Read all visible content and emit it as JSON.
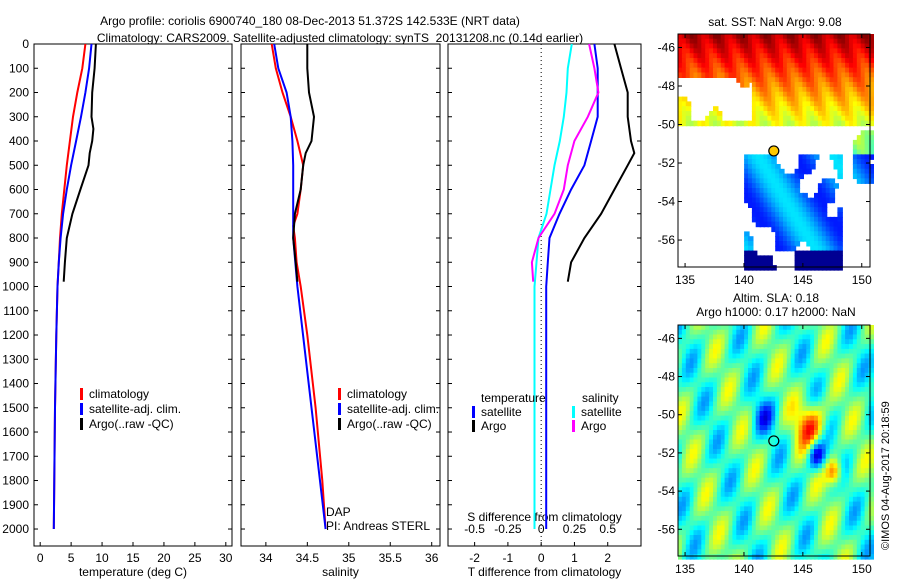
{
  "header": {
    "title1": "Argo profile: coriolis 6900740_180 08-Dec-2013 51.372S 142.533E (NRT data)",
    "title2": "Climatology: CARS2009. Satellite-adjusted climatology: synTS_20131208.nc (0.14d earlier)"
  },
  "copyright": "©IMOS 04-Aug-2017 20:18:59",
  "colors": {
    "climatology": "#ff0000",
    "satellite": "#0000ff",
    "argo": "#000000",
    "s_satellite": "#00ffff",
    "s_argo": "#ff00ff"
  },
  "chart_data": [
    {
      "type": "line",
      "xlabel": "temperature (deg C)",
      "ylabel": "",
      "xlim": [
        -1,
        31
      ],
      "ylim": [
        2070,
        0
      ],
      "xticks": [
        "0",
        "5",
        "10",
        "15",
        "20",
        "25",
        "30"
      ],
      "yticks": [
        "0",
        "100",
        "200",
        "300",
        "400",
        "500",
        "600",
        "700",
        "800",
        "900",
        "1000",
        "1100",
        "1200",
        "1300",
        "1400",
        "1500",
        "1600",
        "1700",
        "1800",
        "1900",
        "2000"
      ],
      "legend": [
        "climatology",
        "satellite-adj. clim.",
        "Argo(..raw -QC)"
      ],
      "series": [
        {
          "name": "climatology",
          "depth": [
            0,
            100,
            200,
            300,
            400,
            500,
            600,
            700,
            800,
            900,
            1000,
            1200,
            1500,
            2000
          ],
          "values": [
            7.3,
            6.8,
            6.0,
            5.3,
            4.8,
            4.3,
            3.9,
            3.5,
            3.2,
            3.0,
            2.8,
            2.6,
            2.4,
            2.2
          ]
        },
        {
          "name": "satellite-adj. clim.",
          "depth": [
            0,
            100,
            200,
            300,
            400,
            500,
            600,
            700,
            800,
            900,
            1000,
            1200,
            1500,
            2000
          ],
          "values": [
            8.3,
            7.9,
            7.3,
            6.6,
            5.8,
            5.0,
            4.3,
            3.7,
            3.3,
            3.0,
            2.8,
            2.6,
            2.4,
            2.2
          ]
        },
        {
          "name": "Argo(..raw -QC)",
          "depth": [
            0,
            100,
            200,
            300,
            350,
            400,
            450,
            500,
            600,
            700,
            800,
            900,
            980
          ],
          "values": [
            9.0,
            8.8,
            8.4,
            8.3,
            8.6,
            8.4,
            8.0,
            7.8,
            6.5,
            5.2,
            4.3,
            4.0,
            3.8
          ]
        }
      ]
    },
    {
      "type": "line",
      "xlabel": "salinity",
      "xlim": [
        33.7,
        36.1
      ],
      "ylim": [
        2070,
        0
      ],
      "xticks": [
        "34",
        "34.5",
        "35",
        "35.5",
        "36"
      ],
      "legend": [
        "climatology",
        "satellite-adj. clim.",
        "Argo(..raw -QC)"
      ],
      "annotation": [
        "DAP",
        "PI: Andreas STERL"
      ],
      "series": [
        {
          "name": "climatology",
          "depth": [
            0,
            100,
            200,
            300,
            400,
            500,
            600,
            700,
            750,
            800,
            900,
            1000,
            1200,
            1500,
            1800,
            2000
          ],
          "values": [
            34.07,
            34.12,
            34.2,
            34.3,
            34.38,
            34.45,
            34.42,
            34.38,
            34.33,
            34.35,
            34.37,
            34.42,
            34.5,
            34.6,
            34.68,
            34.72
          ]
        },
        {
          "name": "satellite-adj. clim.",
          "depth": [
            0,
            100,
            200,
            300,
            400,
            500,
            700,
            800,
            1000,
            1500,
            2000
          ],
          "values": [
            34.1,
            34.15,
            34.25,
            34.3,
            34.32,
            34.33,
            34.33,
            34.33,
            34.38,
            34.55,
            34.72
          ]
        },
        {
          "name": "Argo(..raw -QC)",
          "depth": [
            0,
            100,
            200,
            300,
            400,
            450,
            500,
            600,
            700,
            800,
            900,
            980
          ],
          "values": [
            34.5,
            34.5,
            34.52,
            34.58,
            34.55,
            34.48,
            34.45,
            34.42,
            34.35,
            34.33,
            34.36,
            34.38
          ]
        }
      ]
    },
    {
      "type": "line",
      "xlabel": "T difference from climatology",
      "x2label": "S difference from climatology",
      "xlim": [
        -2.8,
        3.0
      ],
      "x2lim": [
        -0.7,
        0.75
      ],
      "ylim": [
        2070,
        0
      ],
      "xticks": [
        "-2",
        "-1",
        "0",
        "1",
        "2"
      ],
      "x2ticks": [
        "-0.5",
        "-0.25",
        "0",
        "0.25",
        "0.5"
      ],
      "legend_titles": [
        "temperature",
        "salinity"
      ],
      "legend": [
        "satellite",
        "Argo",
        "satellite",
        "Argo"
      ],
      "series": [
        {
          "name": "T satellite",
          "depth": [
            0,
            100,
            200,
            300,
            400,
            500,
            600,
            700,
            800,
            900,
            1000,
            1500,
            2000
          ],
          "values": [
            1.6,
            1.7,
            1.7,
            1.7,
            1.5,
            1.3,
            0.9,
            0.55,
            0.25,
            0.2,
            0.15,
            0.15,
            0.15
          ]
        },
        {
          "name": "T Argo",
          "depth": [
            0,
            100,
            200,
            300,
            400,
            450,
            500,
            600,
            700,
            800,
            900,
            980
          ],
          "values": [
            2.2,
            2.4,
            2.6,
            2.6,
            2.7,
            2.8,
            2.6,
            2.2,
            1.8,
            1.3,
            0.9,
            0.8
          ]
        },
        {
          "name": "S satellite",
          "depth": [
            0,
            100,
            200,
            300,
            400,
            500,
            600,
            700,
            800,
            1000,
            1500,
            2000
          ],
          "values": [
            0.23,
            0.2,
            0.19,
            0.17,
            0.14,
            0.1,
            0.07,
            0.04,
            -0.02,
            -0.05,
            -0.05,
            -0.05
          ]
        },
        {
          "name": "S Argo",
          "depth": [
            0,
            100,
            200,
            300,
            400,
            500,
            600,
            700,
            800,
            900,
            980
          ],
          "values": [
            0.36,
            0.4,
            0.43,
            0.35,
            0.25,
            0.2,
            0.17,
            0.1,
            -0.02,
            -0.07,
            -0.06
          ]
        }
      ]
    },
    {
      "type": "heatmap",
      "title": "sat. SST: NaN Argo: 9.08",
      "xlim": [
        134.4,
        150.7
      ],
      "ylim": [
        -57.4,
        -45.3
      ],
      "xticks": [
        "135",
        "140",
        "145",
        "150"
      ],
      "yticks": [
        "-46",
        "-48",
        "-50",
        "-52",
        "-54",
        "-56"
      ],
      "marker": {
        "lon": 142.533,
        "lat": -51.372
      }
    },
    {
      "type": "heatmap",
      "title1": "Altim. SLA: 0.18",
      "title2": "Argo h1000: 0.17 h2000: NaN",
      "xlim": [
        134.4,
        150.7
      ],
      "ylim": [
        -57.4,
        -45.3
      ],
      "xticks": [
        "135",
        "140",
        "145",
        "150"
      ],
      "yticks": [
        "-46",
        "-48",
        "-50",
        "-52",
        "-54",
        "-56"
      ],
      "marker": {
        "lon": 142.533,
        "lat": -51.372
      }
    }
  ]
}
